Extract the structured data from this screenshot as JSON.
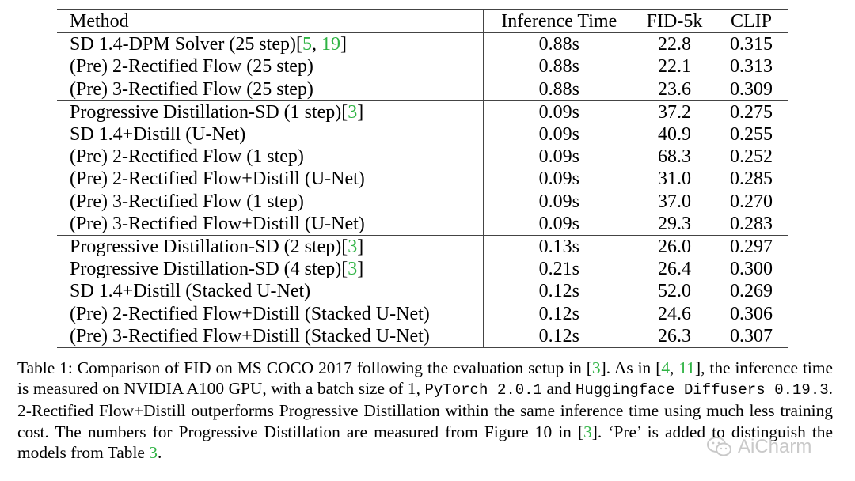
{
  "table": {
    "headers": [
      "Method",
      "Inference Time",
      "FID-5k",
      "CLIP"
    ],
    "groups": [
      [
        {
          "method": "SD 1.4-DPM Solver (25 step)[",
          "refs": [
            "5",
            ", ",
            "19",
            "]"
          ],
          "bold": false,
          "time": "0.88s",
          "fid": "22.8",
          "clip": "0.315",
          "fid_bold": false,
          "clip_bold": true
        },
        {
          "method": "(Pre) 2-Rectified Flow (25 step)",
          "refs": [],
          "bold": true,
          "time": "0.88s",
          "fid": "22.1",
          "clip": "0.313",
          "fid_bold": true,
          "clip_bold": false
        },
        {
          "method": "(Pre) 3-Rectified Flow (25 step)",
          "refs": [],
          "bold": true,
          "time": "0.88s",
          "fid": "23.6",
          "clip": "0.309",
          "fid_bold": false,
          "clip_bold": false
        }
      ],
      [
        {
          "method": "Progressive Distillation-SD (1 step)[",
          "refs": [
            "3",
            "]"
          ],
          "bold": false,
          "time": "0.09s",
          "fid": "37.2",
          "clip": "0.275",
          "fid_bold": false,
          "clip_bold": false
        },
        {
          "method": "SD 1.4+Distill (U-Net)",
          "refs": [],
          "bold": false,
          "time": "0.09s",
          "fid": "40.9",
          "clip": "0.255",
          "fid_bold": false,
          "clip_bold": false
        },
        {
          "method": "(Pre) 2-Rectified Flow (1 step)",
          "refs": [],
          "bold": true,
          "time": "0.09s",
          "fid": "68.3",
          "clip": "0.252",
          "fid_bold": false,
          "clip_bold": false
        },
        {
          "method": "(Pre) 2-Rectified Flow+Distill (U-Net)",
          "refs": [],
          "bold": true,
          "time": "0.09s",
          "fid": "31.0",
          "clip": "0.285",
          "fid_bold": false,
          "clip_bold": true
        },
        {
          "method": "(Pre) 3-Rectified Flow (1 step)",
          "refs": [],
          "bold": true,
          "time": "0.09s",
          "fid": "37.0",
          "clip": "0.270",
          "fid_bold": false,
          "clip_bold": false
        },
        {
          "method": "(Pre) 3-Rectified Flow+Distill (U-Net)",
          "refs": [],
          "bold": true,
          "time": "0.09s",
          "fid": "29.3",
          "clip": "0.283",
          "fid_bold": true,
          "clip_bold": false
        }
      ],
      [
        {
          "method": "Progressive Distillation-SD (2 step)[",
          "refs": [
            "3",
            "]"
          ],
          "bold": false,
          "time": "0.13s",
          "fid": "26.0",
          "clip": "0.297",
          "fid_bold": false,
          "clip_bold": false
        },
        {
          "method": "Progressive Distillation-SD (4 step)[",
          "refs": [
            "3",
            "]"
          ],
          "bold": false,
          "time": "0.21s",
          "fid": "26.4",
          "clip": "0.300",
          "fid_bold": false,
          "clip_bold": false
        },
        {
          "method": "SD 1.4+Distill (Stacked U-Net)",
          "refs": [],
          "bold": false,
          "time": "0.12s",
          "fid": "52.0",
          "clip": "0.269",
          "fid_bold": false,
          "clip_bold": false
        },
        {
          "method": "(Pre) 2-Rectified Flow+Distill (Stacked U-Net)",
          "refs": [],
          "bold": true,
          "time": "0.12s",
          "fid": "24.6",
          "clip": "0.306",
          "fid_bold": true,
          "clip_bold": false
        },
        {
          "method": "(Pre) 3-Rectified Flow+Distill (Stacked U-Net)",
          "refs": [],
          "bold": true,
          "time": "0.12s",
          "fid": "26.3",
          "clip": "0.307",
          "fid_bold": false,
          "clip_bold": true
        }
      ]
    ]
  },
  "caption": {
    "segments": [
      {
        "text": "Table 1: Comparison of FID on MS COCO 2017 following the evaluation setup in [",
        "style": "plain"
      },
      {
        "text": "3",
        "style": "ref"
      },
      {
        "text": "].  As in [",
        "style": "plain"
      },
      {
        "text": "4",
        "style": "ref"
      },
      {
        "text": ", ",
        "style": "plain"
      },
      {
        "text": "11",
        "style": "ref"
      },
      {
        "text": "], the inference time is measured on NVIDIA A100 GPU, with a batch size of 1, ",
        "style": "plain"
      },
      {
        "text": "PyTorch 2.0.1",
        "style": "mono"
      },
      {
        "text": " and ",
        "style": "plain"
      },
      {
        "text": "Huggingface Diffusers 0.19.3",
        "style": "mono"
      },
      {
        "text": ". 2-Rectified Flow+Distill outperforms Progressive Distillation within the same inference time using much less training cost. The numbers for Progressive Distillation are measured from Figure 10 in  [",
        "style": "plain"
      },
      {
        "text": "3",
        "style": "ref"
      },
      {
        "text": "]. ‘Pre’ is added to distinguish the models from Table ",
        "style": "plain"
      },
      {
        "text": "3",
        "style": "ref"
      },
      {
        "text": ".",
        "style": "plain"
      }
    ]
  },
  "watermark": {
    "text": "AiCharm",
    "icon": "wechat-icon"
  }
}
